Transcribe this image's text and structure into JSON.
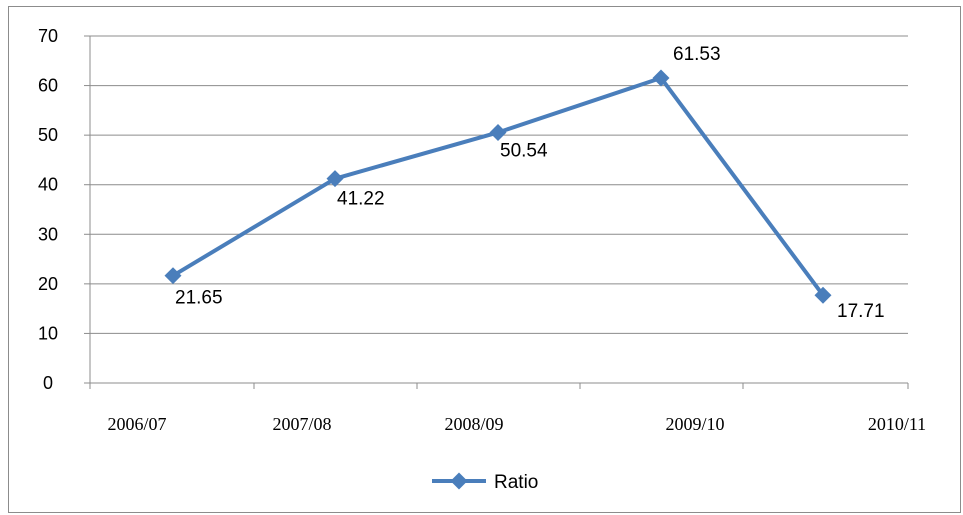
{
  "chart_data": {
    "type": "line",
    "title": "",
    "xlabel": "",
    "ylabel": "",
    "categories": [
      "2006/07",
      "2007/08",
      "2008/09",
      "2009/10",
      "2010/11"
    ],
    "series": [
      {
        "name": "Ratio",
        "values": [
          21.65,
          41.22,
          50.54,
          61.53,
          17.71
        ],
        "color": "#4a7ebb"
      }
    ],
    "data_labels": [
      "21.65",
      "41.22",
      "50.54",
      "61.53",
      "17.71"
    ],
    "y_ticks": [
      "0",
      "10",
      "20",
      "30",
      "40",
      "50",
      "60",
      "70"
    ],
    "ylim": [
      0,
      70
    ],
    "grid": true,
    "legend_position": "bottom"
  }
}
